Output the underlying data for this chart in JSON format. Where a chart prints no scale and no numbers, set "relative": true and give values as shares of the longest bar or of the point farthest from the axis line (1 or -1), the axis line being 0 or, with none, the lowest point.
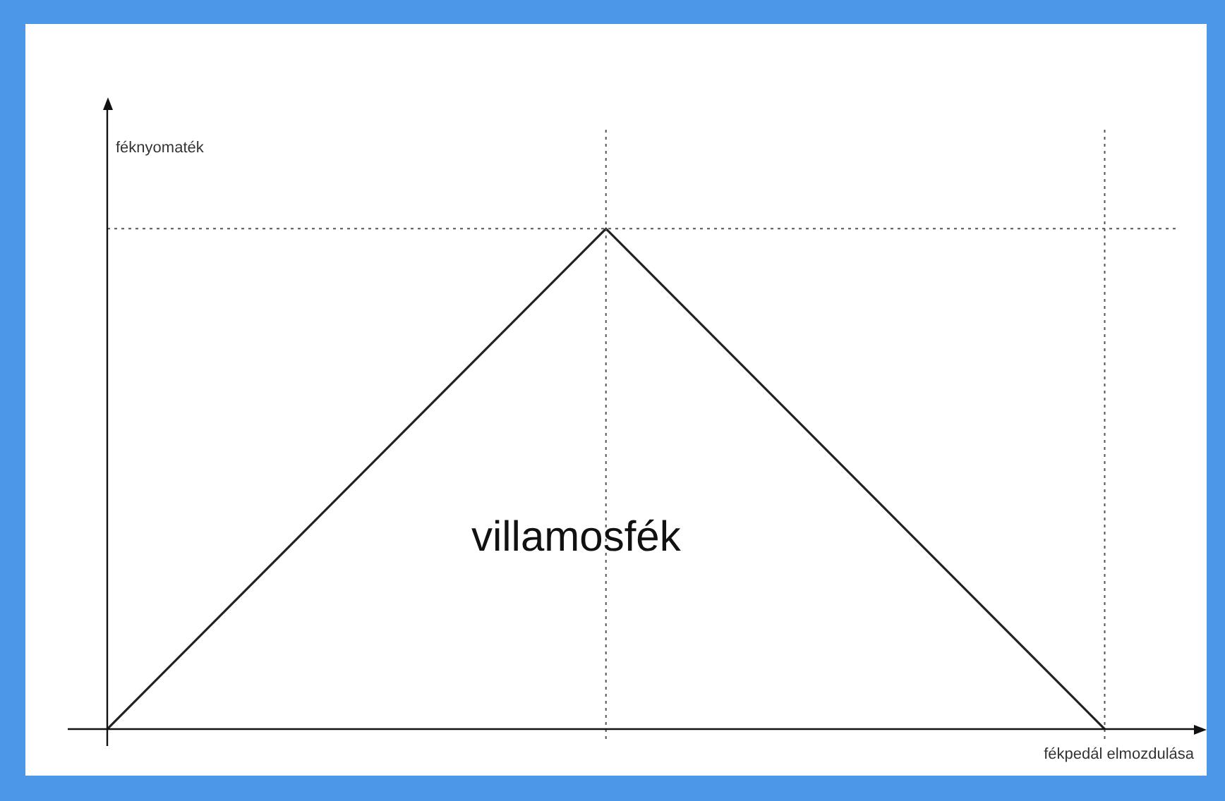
{
  "chart_data": {
    "type": "line",
    "relative": true,
    "xlabel": "fékpedál elmozdulása",
    "ylabel": "féknyomaték",
    "categories": [
      null,
      null,
      null
    ],
    "series": [
      {
        "color": "#222222",
        "values": [
          0,
          1,
          0
        ]
      }
    ],
    "annotations": [
      "villamosfék"
    ],
    "marker": "none",
    "legend": false
  }
}
